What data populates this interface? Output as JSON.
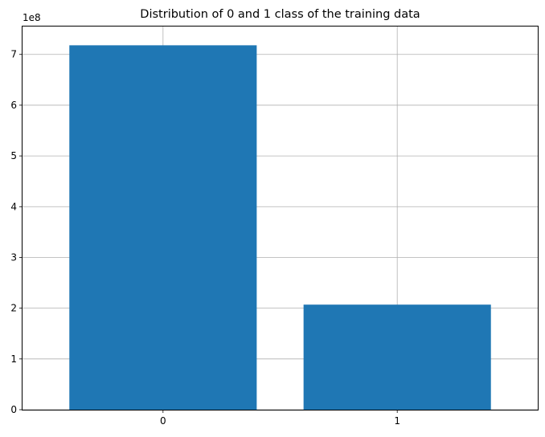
{
  "chart_data": {
    "type": "bar",
    "title": "Distribution of 0 and 1 class of the training data",
    "categories": [
      "0",
      "1"
    ],
    "values": [
      718000000,
      207000000
    ],
    "xlabel": "",
    "ylabel": "",
    "ylim": [
      0,
      755000000
    ],
    "yticks": [
      0,
      1,
      2,
      3,
      4,
      5,
      6,
      7
    ],
    "y_offset_label": "1e8",
    "y_scale": 100000000,
    "grid": true,
    "legend": "none",
    "bar_color": "#1f77b4",
    "grid_color": "#b0b0b0"
  }
}
